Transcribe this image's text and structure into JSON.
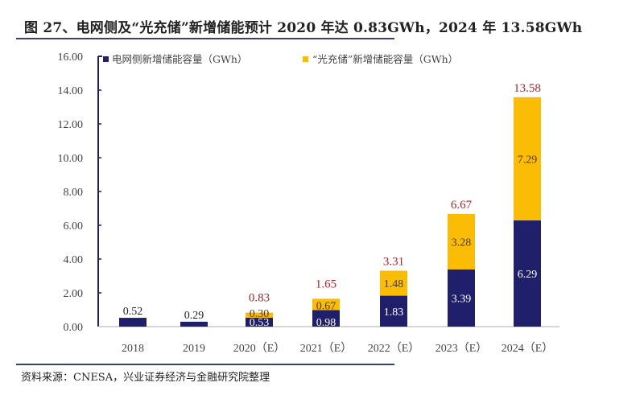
{
  "figure": {
    "title": "图 27、电网侧及“光充储”新增储能预计 2020 年达 0.83GWh，2024 年 13.58GWh",
    "source": "资料来源：CNESA，兴业证券经济与金融研究院整理"
  },
  "colors": {
    "grid_side": "#1f1f6b",
    "pv_storage": "#fbbc05",
    "total_label": "#b0222a",
    "axis": "#1f1f6b"
  },
  "chart_data": {
    "type": "bar",
    "stacked": true,
    "title": "图 27、电网侧及“光充储”新增储能预计 2020 年达 0.83GWh，2024 年 13.58GWh",
    "xlabel": "",
    "ylabel": "",
    "ylim": [
      0,
      16
    ],
    "yticks": [
      "0.00",
      "2.00",
      "4.00",
      "6.00",
      "8.00",
      "10.00",
      "12.00",
      "14.00",
      "16.00"
    ],
    "grid": false,
    "legend_position": "top",
    "categories": [
      "2018",
      "2019",
      "2020（E）",
      "2021（E）",
      "2022（E）",
      "2023（E）",
      "2024（E）"
    ],
    "series": [
      {
        "name": "电网侧新增储能容量（GWh）",
        "values": [
          0.52,
          0.29,
          0.53,
          0.98,
          1.83,
          3.39,
          6.29
        ],
        "labels": [
          "0.52",
          "0.29",
          "0.53",
          "0.98",
          "1.83",
          "3.39",
          "6.29"
        ]
      },
      {
        "name": "“光充储”新增储能容量（GWh）",
        "values": [
          null,
          null,
          0.3,
          0.67,
          1.48,
          3.28,
          7.29
        ],
        "labels": [
          "",
          "",
          "0.30",
          "0.67",
          "1.48",
          "3.28",
          "7.29"
        ]
      }
    ],
    "totals": [
      null,
      null,
      0.83,
      1.65,
      3.31,
      6.67,
      13.58
    ],
    "total_labels": [
      "",
      "",
      "0.83",
      "1.65",
      "3.31",
      "6.67",
      "13.58"
    ]
  }
}
